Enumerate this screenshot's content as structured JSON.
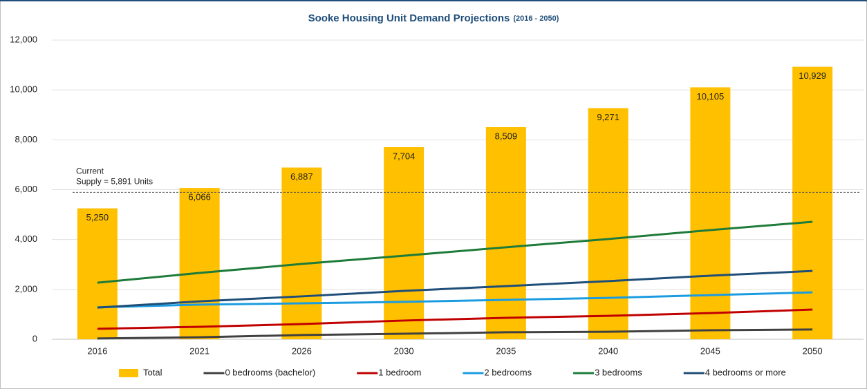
{
  "chart_data": {
    "type": "combo",
    "title": "Sooke Housing Unit Demand Projections",
    "subtitle": "(2016 - 2050)",
    "categories": [
      "2016",
      "2021",
      "2026",
      "2030",
      "2035",
      "2040",
      "2045",
      "2050"
    ],
    "series": [
      {
        "name": "Total",
        "type": "bar",
        "color": "#ffc000",
        "values": [
          5250,
          6066,
          6887,
          7704,
          8509,
          9271,
          10105,
          10929
        ],
        "value_labels": [
          "5,250",
          "6,066",
          "6,887",
          "7,704",
          "8,509",
          "9,271",
          "10,105",
          "10,929"
        ]
      },
      {
        "name": "0 bedrooms (bachelor)",
        "type": "line",
        "color": "#404040",
        "values": [
          30,
          80,
          170,
          220,
          280,
          300,
          360,
          390
        ]
      },
      {
        "name": "1 bedroom",
        "type": "line",
        "color": "#c00000",
        "values": [
          420,
          500,
          610,
          750,
          860,
          940,
          1050,
          1190
        ]
      },
      {
        "name": "2 bedrooms",
        "type": "line",
        "color": "#1b9ce0",
        "values": [
          1280,
          1390,
          1440,
          1500,
          1580,
          1660,
          1770,
          1880
        ]
      },
      {
        "name": "3 bedrooms",
        "type": "line",
        "color": "#1e7b3a",
        "values": [
          2270,
          2660,
          3020,
          3350,
          3690,
          4020,
          4380,
          4710
        ]
      },
      {
        "name": "4 bedrooms or more",
        "type": "line",
        "color": "#1f4e79",
        "values": [
          1270,
          1520,
          1720,
          1940,
          2130,
          2330,
          2550,
          2740
        ]
      }
    ],
    "annotation": {
      "lines": [
        "Current",
        "Supply = 5,891 Units"
      ],
      "value": 5891
    },
    "ylim": [
      0,
      12000
    ],
    "yticks": [
      0,
      {
        "value": 2000,
        "label": "2,000"
      },
      {
        "value": 4000,
        "label": "4,000"
      },
      {
        "value": 6000,
        "label": "6,000"
      },
      {
        "value": 8000,
        "label": "8,000"
      },
      {
        "value": 10000,
        "label": "10,000"
      },
      {
        "value": 12000,
        "label": "12,000"
      }
    ],
    "grid": true,
    "legend": "bottom"
  }
}
